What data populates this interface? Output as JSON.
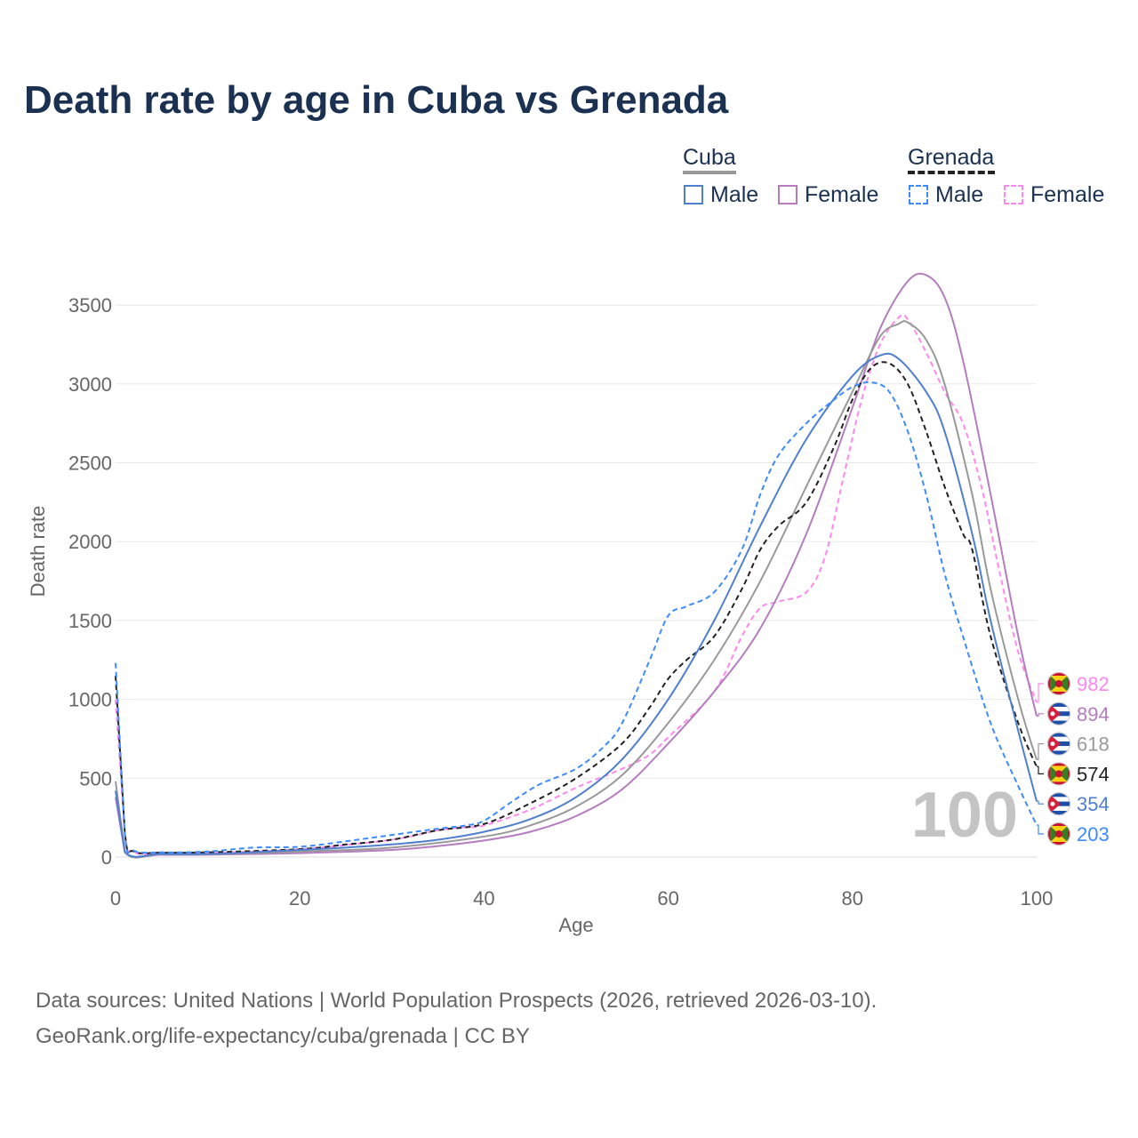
{
  "title": "Death rate by age in Cuba vs Grenada",
  "legend": {
    "groups": [
      {
        "name": "Cuba",
        "items": [
          "Male",
          "Female"
        ]
      },
      {
        "name": "Grenada",
        "items": [
          "Male",
          "Female"
        ]
      }
    ]
  },
  "footer": {
    "line1": "Data sources: United Nations | World Population Prospects (2026, retrieved 2026-03-10).",
    "line2": "GeoRank.org/life-expectancy/cuba/grenada | CC BY"
  },
  "watermark": "100",
  "chart_data": {
    "type": "line",
    "title": "Death rate by age in Cuba vs Grenada",
    "xlabel": "Age",
    "ylabel": "Death rate",
    "xlim": [
      0,
      100
    ],
    "ylim": [
      0,
      3700
    ],
    "xticks": [
      0,
      20,
      40,
      60,
      80,
      100
    ],
    "yticks": [
      0,
      500,
      1000,
      1500,
      2000,
      2500,
      3000,
      3500
    ],
    "grid": true,
    "legend_position": "top-right",
    "series": [
      {
        "name": "Grenada Female",
        "color": "#ff88ee",
        "dash": true,
        "flag": "grenada",
        "end_label": "982",
        "x": [
          0,
          1,
          2,
          5,
          10,
          20,
          30,
          35,
          38,
          40,
          45,
          50,
          55,
          58,
          60,
          65,
          68,
          70,
          72,
          75,
          77,
          79,
          81,
          83,
          85,
          86,
          88,
          90,
          92,
          94,
          96,
          98,
          100
        ],
        "y": [
          1000,
          150,
          30,
          25,
          25,
          50,
          110,
          170,
          190,
          200,
          300,
          440,
          560,
          650,
          760,
          1050,
          1400,
          1580,
          1620,
          1680,
          1900,
          2400,
          2900,
          3250,
          3420,
          3410,
          3200,
          2950,
          2750,
          2350,
          1800,
          1300,
          982
        ]
      },
      {
        "name": "Cuba Female",
        "color": "#b57cbf",
        "dash": false,
        "flag": "cuba",
        "end_label": "894",
        "x": [
          0,
          1,
          5,
          10,
          20,
          30,
          35,
          40,
          45,
          50,
          55,
          60,
          65,
          70,
          75,
          80,
          83,
          86,
          88,
          90,
          92,
          95,
          98,
          100
        ],
        "y": [
          380,
          30,
          15,
          15,
          25,
          45,
          70,
          105,
          160,
          260,
          430,
          720,
          1050,
          1450,
          2050,
          2850,
          3350,
          3650,
          3690,
          3550,
          3150,
          2300,
          1400,
          894
        ]
      },
      {
        "name": "Cuba Total",
        "color": "#999999",
        "dash": false,
        "flag": "cuba",
        "end_label": "618",
        "x": [
          0,
          1,
          5,
          10,
          20,
          30,
          40,
          45,
          50,
          55,
          60,
          65,
          70,
          75,
          80,
          83,
          85,
          86,
          88,
          90,
          93,
          95,
          98,
          100
        ],
        "y": [
          480,
          35,
          18,
          18,
          35,
          60,
          130,
          200,
          320,
          520,
          850,
          1250,
          1750,
          2350,
          2950,
          3300,
          3380,
          3390,
          3280,
          3000,
          2300,
          1700,
          1000,
          618
        ]
      },
      {
        "name": "Grenada Total",
        "color": "#222222",
        "dash": true,
        "flag": "grenada",
        "end_label": "574",
        "x": [
          0,
          1,
          2,
          5,
          10,
          20,
          25,
          30,
          35,
          40,
          45,
          50,
          55,
          58,
          60,
          62,
          65,
          68,
          70,
          72,
          75,
          78,
          80,
          82,
          84,
          86,
          88,
          90,
          92,
          93,
          95,
          98,
          100
        ],
        "y": [
          1150,
          160,
          35,
          28,
          30,
          50,
          80,
          110,
          170,
          210,
          340,
          500,
          720,
          950,
          1130,
          1250,
          1400,
          1700,
          1950,
          2100,
          2250,
          2600,
          2900,
          3100,
          3130,
          3000,
          2700,
          2350,
          2050,
          1950,
          1400,
          850,
          574
        ]
      },
      {
        "name": "Cuba Male",
        "color": "#4f7fcf",
        "dash": false,
        "flag": "cuba",
        "end_label": "354",
        "x": [
          0,
          1,
          5,
          10,
          15,
          20,
          25,
          30,
          35,
          40,
          45,
          50,
          55,
          60,
          65,
          70,
          75,
          80,
          83,
          85,
          88,
          90,
          93,
          95,
          98,
          100
        ],
        "y": [
          420,
          35,
          20,
          20,
          30,
          45,
          60,
          80,
          110,
          160,
          240,
          380,
          620,
          1000,
          1500,
          2100,
          2650,
          3050,
          3180,
          3160,
          2950,
          2700,
          2050,
          1500,
          800,
          354
        ]
      },
      {
        "name": "Grenada Male",
        "color": "#3d8bff",
        "dash": true,
        "flag": "grenada",
        "end_label": "203",
        "x": [
          0,
          1,
          2,
          5,
          10,
          15,
          20,
          25,
          30,
          35,
          38,
          40,
          43,
          46,
          50,
          53,
          55,
          58,
          60,
          62,
          65,
          68,
          70,
          72,
          75,
          78,
          80,
          82,
          84,
          86,
          88,
          90,
          92,
          95,
          98,
          100
        ],
        "y": [
          1230,
          150,
          40,
          30,
          35,
          60,
          65,
          100,
          140,
          180,
          200,
          230,
          350,
          460,
          560,
          700,
          850,
          1250,
          1530,
          1590,
          1680,
          1950,
          2300,
          2550,
          2750,
          2900,
          2980,
          3010,
          2950,
          2700,
          2300,
          1800,
          1400,
          850,
          450,
          203
        ]
      }
    ]
  }
}
